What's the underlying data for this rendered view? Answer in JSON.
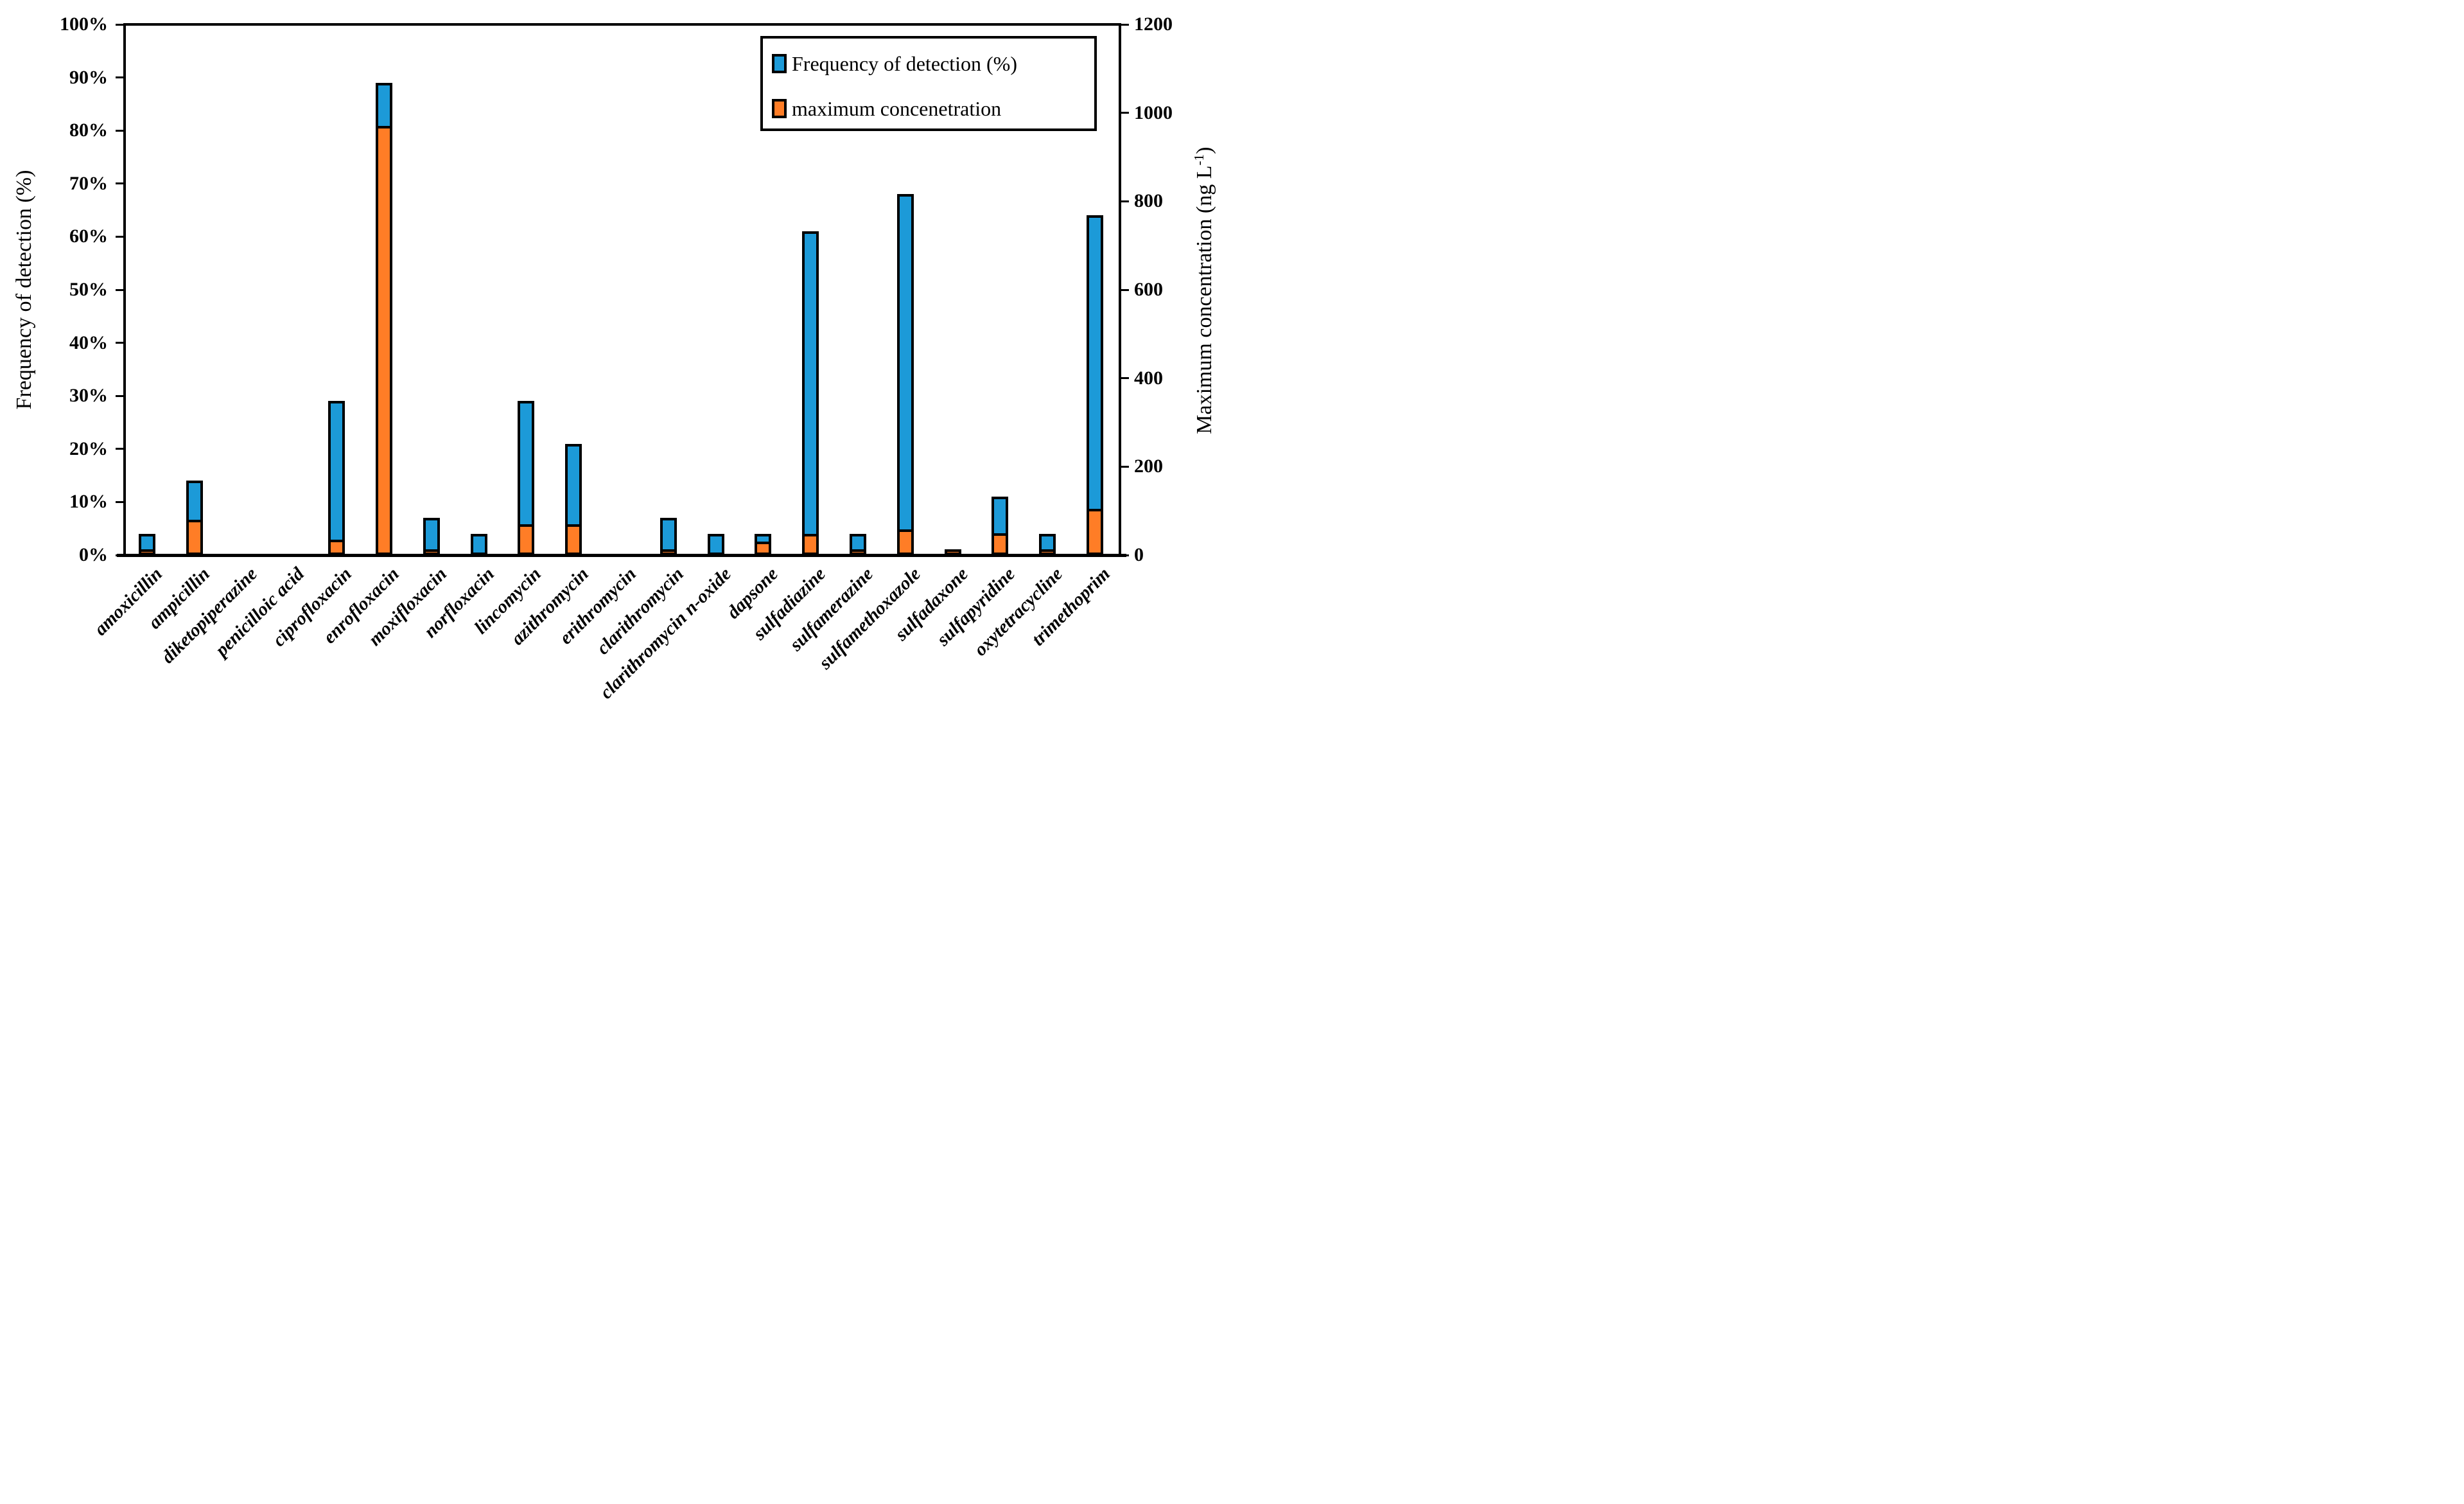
{
  "chart_data": {
    "type": "bar",
    "title": "",
    "categories": [
      "amoxicillin",
      "ampicillin",
      "diketopiperazine",
      "penicilloic acid",
      "ciprofloxacin",
      "enrofloxacin",
      "moxifloxacin",
      "norfloxacin",
      "lincomycin",
      "azithromycin",
      "erithromycin",
      "clarithromycin",
      "clarithromycin n-oxide",
      "dapsone",
      "sulfadiazine",
      "sulfamerazine",
      "sulfamethoxazole",
      "sulfadaxone",
      "sulfapyridine",
      "oxytetracycline",
      "trimethoprim"
    ],
    "series": [
      {
        "name": "Frequency of detection (%)",
        "axis": "left",
        "unit": "%",
        "color": "#1C9AD8",
        "values": [
          4,
          14,
          0,
          0,
          29,
          89,
          7,
          4,
          29,
          21,
          0,
          7,
          4,
          4,
          61,
          4,
          68,
          1,
          11,
          4,
          64
        ]
      },
      {
        "name": "maximum concenetration",
        "axis": "right",
        "unit": "ng L-1",
        "color": "#FF7D26",
        "values": [
          5,
          80,
          0,
          0,
          35,
          970,
          8,
          0,
          70,
          70,
          0,
          5,
          0,
          30,
          48,
          8,
          58,
          10,
          50,
          8,
          105
        ]
      }
    ],
    "left_axis": {
      "label": "Frequency of detection (%)",
      "min": 0,
      "max": 100,
      "ticks": [
        "0%",
        "10%",
        "20%",
        "30%",
        "40%",
        "50%",
        "60%",
        "70%",
        "80%",
        "90%",
        "100%"
      ]
    },
    "right_axis": {
      "label_main": "Maximum concentration (ng L",
      "label_sup": "-1",
      "label_end": ")",
      "min": 0,
      "max": 1200,
      "ticks": [
        "0",
        "200",
        "400",
        "600",
        "800",
        "1000",
        "1200"
      ]
    },
    "legend": {
      "items": [
        {
          "label": "Frequency of detection (%)",
          "color": "#1C9AD8"
        },
        {
          "label": "maximum concenetration",
          "color": "#FF7D26"
        }
      ],
      "position": "top-right"
    },
    "grid": false,
    "bar_outline_color": "#000000",
    "background_color": "#ffffff"
  }
}
